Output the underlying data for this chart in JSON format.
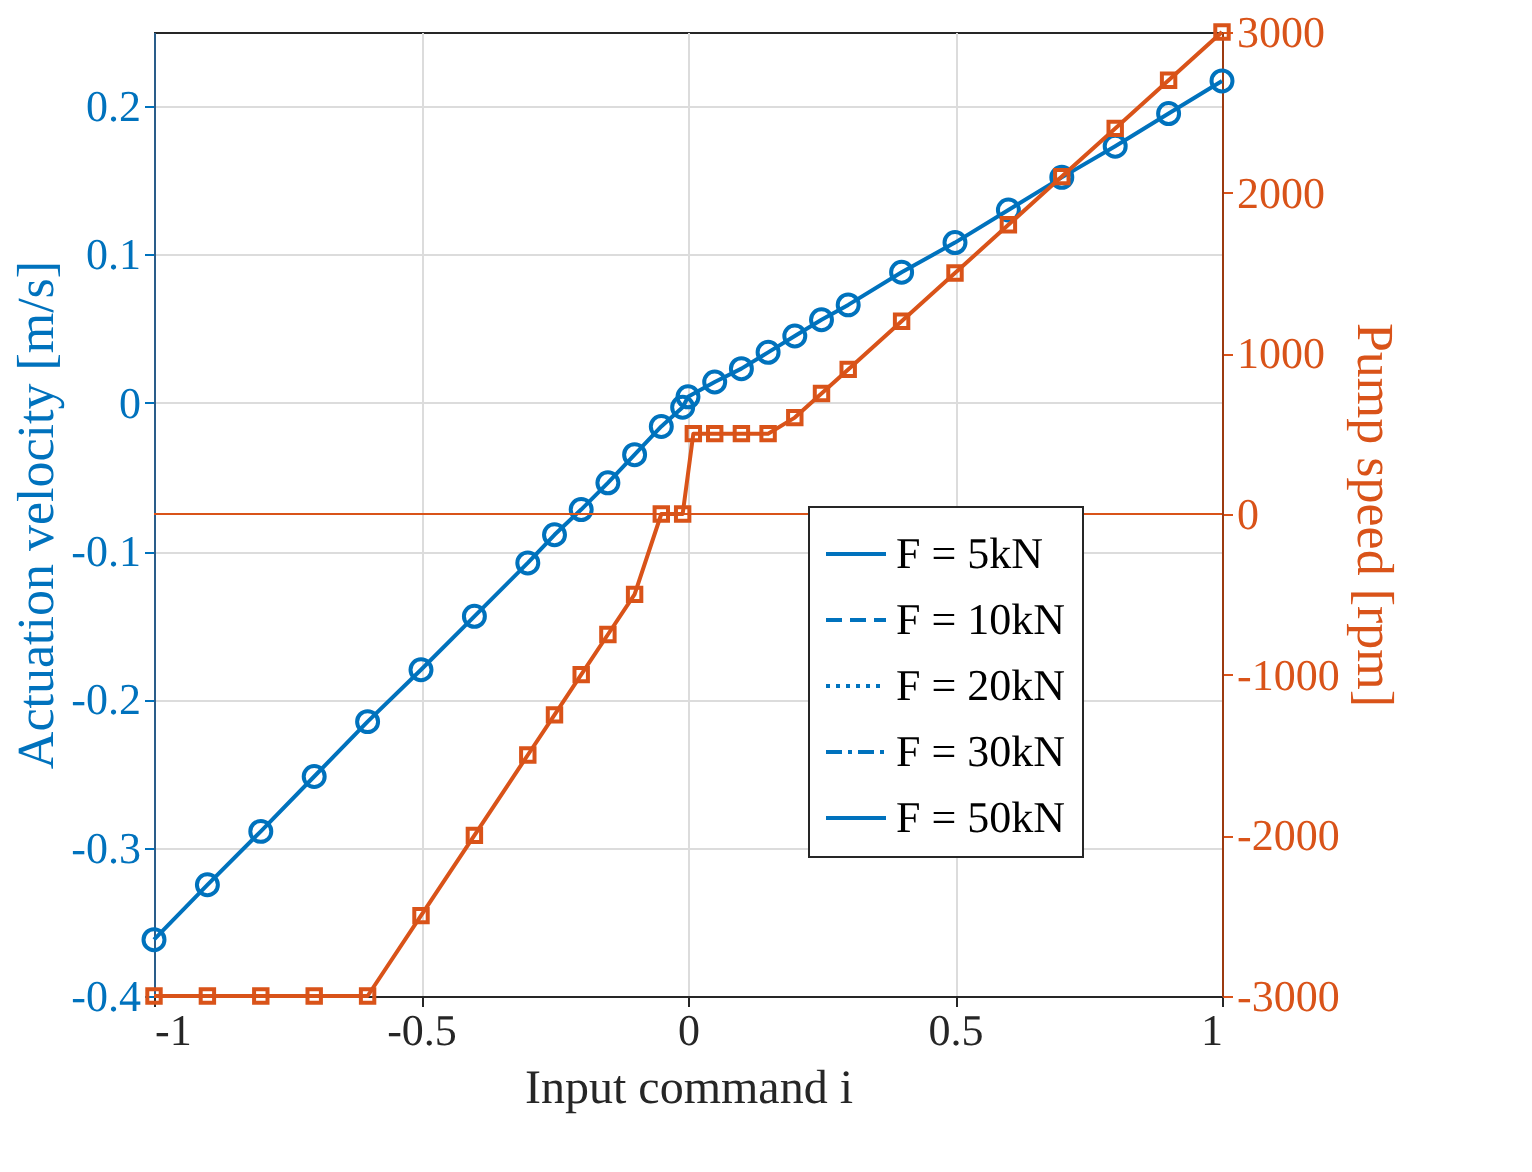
{
  "chart_data": {
    "type": "line",
    "xlabel": "Input command i",
    "ylabel": "Actuation velocity [m/s]",
    "y2label": "Pump speed [rpm]",
    "x": [
      -1,
      -0.9,
      -0.8,
      -0.7,
      -0.6,
      -0.5,
      -0.4,
      -0.3,
      -0.25,
      -0.2,
      -0.15,
      -0.1,
      -0.05,
      -0.01,
      0,
      0.05,
      0.1,
      0.15,
      0.2,
      0.25,
      0.3,
      0.4,
      0.5,
      0.6,
      0.7,
      0.8,
      0.9,
      1
    ],
    "series": [
      {
        "name": "F = 5kN",
        "color": "#0072bd",
        "line_style": "solid",
        "values": [
          null,
          null,
          null,
          null,
          null,
          null,
          null,
          null,
          null,
          null,
          null,
          null,
          null,
          null,
          null,
          null,
          null,
          null,
          null,
          null,
          null,
          null,
          null,
          null,
          null,
          null,
          null,
          null
        ]
      },
      {
        "name": "F = 10kN",
        "color": "#0072bd",
        "line_style": "dashed",
        "values": [
          null,
          null,
          null,
          null,
          null,
          null,
          null,
          null,
          null,
          null,
          null,
          null,
          null,
          null,
          null,
          null,
          null,
          null,
          null,
          null,
          null,
          null,
          null,
          null,
          null,
          null,
          null,
          null
        ]
      },
      {
        "name": "F = 20kN",
        "color": "#0072bd",
        "line_style": "dotted",
        "values": [
          null,
          null,
          null,
          null,
          null,
          null,
          null,
          null,
          null,
          null,
          null,
          null,
          null,
          null,
          null,
          null,
          null,
          null,
          null,
          null,
          null,
          null,
          null,
          null,
          null,
          null,
          null,
          null
        ]
      },
      {
        "name": "F = 30kN",
        "color": "#0072bd",
        "line_style": "dashdot",
        "values": [
          null,
          null,
          null,
          null,
          null,
          null,
          null,
          null,
          null,
          null,
          null,
          null,
          null,
          null,
          null,
          null,
          null,
          null,
          null,
          null,
          null,
          null,
          null,
          null,
          null,
          null,
          null,
          null
        ]
      },
      {
        "name": "F = 50kN",
        "color": "#0072bd",
        "line_style": "solid",
        "marker": "circle",
        "values": [
          -0.362,
          -0.325,
          -0.289,
          -0.252,
          -0.215,
          -0.18,
          -0.144,
          -0.108,
          -0.089,
          -0.072,
          -0.054,
          -0.035,
          -0.016,
          -0.003,
          0.004,
          0.014,
          0.023,
          0.034,
          0.045,
          0.056,
          0.066,
          0.088,
          0.108,
          0.13,
          0.152,
          0.173,
          0.195,
          0.217
        ]
      },
      {
        "color": "#d95319",
        "line_style": "solid",
        "marker": "square",
        "axis": "y2",
        "x": [
          -1,
          -0.9,
          -0.8,
          -0.7,
          -0.6,
          -0.5,
          -0.4,
          -0.3,
          -0.25,
          -0.2,
          -0.15,
          -0.1,
          -0.05,
          -0.01,
          0.01,
          0.05,
          0.1,
          0.15,
          0.2,
          0.25,
          0.3,
          0.4,
          0.5,
          0.6,
          0.7,
          0.8,
          0.9,
          1
        ],
        "values": [
          -3000,
          -3000,
          -3000,
          -3000,
          -3000,
          -2500,
          -2000,
          -1500,
          -1250,
          -1000,
          -750,
          -500,
          0,
          0,
          500,
          500,
          500,
          500,
          600,
          750,
          900,
          1200,
          1500,
          1800,
          2100,
          2400,
          2700,
          3000
        ]
      }
    ],
    "xlim": [
      -1,
      1
    ],
    "xticks": [
      -1,
      -0.5,
      0,
      0.5,
      1
    ],
    "ylim": [
      -0.4,
      0.25
    ],
    "yticks": [
      -0.4,
      -0.3,
      -0.2,
      -0.1,
      0,
      0.1,
      0.2
    ],
    "y2lim": [
      -3000,
      3000
    ],
    "y2ticks": [
      -3000,
      -2000,
      -1000,
      0,
      1000,
      2000,
      3000
    ],
    "ref_lines": [
      {
        "axis": "y2",
        "value": 0,
        "color": "#d95319"
      }
    ],
    "grid": true,
    "legend": "bottom right"
  }
}
